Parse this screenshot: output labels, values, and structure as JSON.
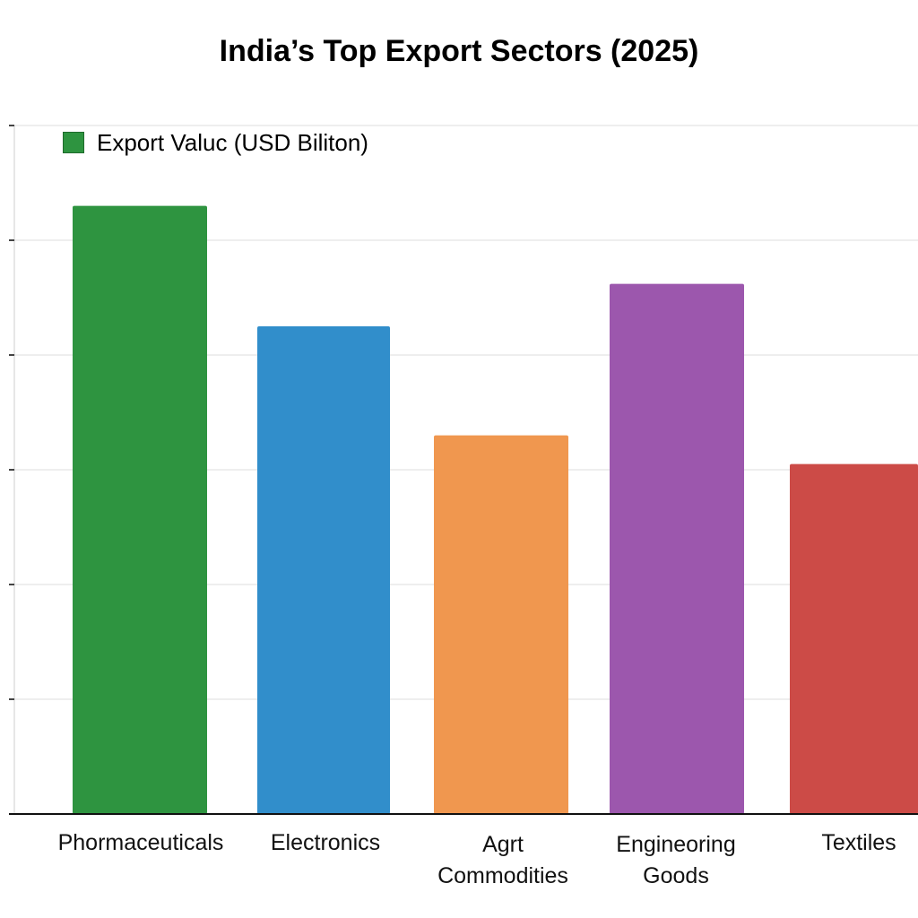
{
  "chart_data": {
    "type": "bar",
    "title": "India’s Top Export Sectors (2025)",
    "legend": [
      {
        "label": "Export Valuc (USD Biliton)",
        "color": "#2e9440"
      }
    ],
    "legend_placement": "top-left",
    "categories": [
      "Phormaceuticals",
      "Electronics",
      "Agrt Commodities",
      "Engineoring Goods",
      "Textiles"
    ],
    "category_lines": [
      [
        "Phormaceuticals"
      ],
      [
        "Electronics"
      ],
      [
        "Agrt",
        "Commodities"
      ],
      [
        "Engineoring",
        "Goods"
      ],
      [
        "Textiles"
      ]
    ],
    "values": [
      5.3,
      4.25,
      3.3,
      4.62,
      3.05
    ],
    "colors": [
      "#2e9440",
      "#318ecb",
      "#f0974f",
      "#9c57ad",
      "#cc4b47"
    ],
    "ylim": [
      0,
      6
    ],
    "gridlines": [
      0,
      1,
      2,
      3,
      4,
      5,
      6
    ],
    "grid": true,
    "ytick_labels_visible": false
  }
}
